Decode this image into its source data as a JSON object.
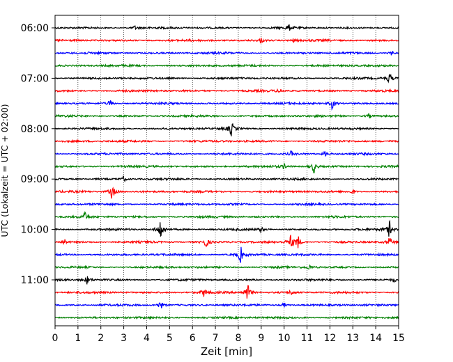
{
  "chart_data": {
    "type": "line",
    "title": "",
    "xlabel": "Zeit  [min]",
    "ylabel": "UTC (Lokalzeit = UTC + 02:00)",
    "xlim": [
      0,
      15
    ],
    "x_ticks": [
      "0",
      "1",
      "2",
      "3",
      "4",
      "5",
      "6",
      "7",
      "8",
      "9",
      "10",
      "11",
      "12",
      "13",
      "14",
      "15"
    ],
    "y_ticks": [
      "06:00",
      "07:00",
      "08:00",
      "09:00",
      "10:00",
      "11:00"
    ],
    "grid": "vertical dotted",
    "trace_colors": [
      "#000000",
      "#ff0000",
      "#0000ff",
      "#008000"
    ],
    "row_start_times": [
      "06:00",
      "06:15",
      "06:30",
      "06:45",
      "07:00",
      "07:15",
      "07:30",
      "07:45",
      "08:00",
      "08:15",
      "08:30",
      "08:45",
      "09:00",
      "09:15",
      "09:30",
      "09:45",
      "10:00",
      "10:15",
      "10:30",
      "10:45",
      "11:00",
      "11:15",
      "11:30",
      "11:45"
    ],
    "events": [
      {
        "row": 0,
        "x": 3.5,
        "amp": 0.25
      },
      {
        "row": 0,
        "x": 10.2,
        "amp": 0.35
      },
      {
        "row": 1,
        "x": 9.0,
        "amp": 0.3
      },
      {
        "row": 1,
        "x": 10.4,
        "amp": 0.2
      },
      {
        "row": 2,
        "x": 14.7,
        "amp": 0.3
      },
      {
        "row": 4,
        "x": 14.6,
        "amp": 0.7
      },
      {
        "row": 5,
        "x": 9.8,
        "amp": 0.25
      },
      {
        "row": 6,
        "x": 2.4,
        "amp": 0.4
      },
      {
        "row": 6,
        "x": 12.1,
        "amp": 0.7
      },
      {
        "row": 7,
        "x": 13.7,
        "amp": 0.3
      },
      {
        "row": 8,
        "x": 7.7,
        "amp": 0.9
      },
      {
        "row": 10,
        "x": 10.3,
        "amp": 0.3
      },
      {
        "row": 10,
        "x": 11.8,
        "amp": 0.3
      },
      {
        "row": 11,
        "x": 11.3,
        "amp": 0.8
      },
      {
        "row": 11,
        "x": 10.0,
        "amp": 0.3
      },
      {
        "row": 12,
        "x": 3.0,
        "amp": 0.3
      },
      {
        "row": 13,
        "x": 2.5,
        "amp": 1.1
      },
      {
        "row": 13,
        "x": 13.0,
        "amp": 0.3
      },
      {
        "row": 15,
        "x": 1.3,
        "amp": 0.5
      },
      {
        "row": 16,
        "x": 4.6,
        "amp": 1.3
      },
      {
        "row": 16,
        "x": 9.0,
        "amp": 0.3
      },
      {
        "row": 16,
        "x": 14.6,
        "amp": 1.0
      },
      {
        "row": 17,
        "x": 0.4,
        "amp": 0.4
      },
      {
        "row": 17,
        "x": 6.6,
        "amp": 0.7
      },
      {
        "row": 17,
        "x": 10.3,
        "amp": 0.8
      },
      {
        "row": 17,
        "x": 10.6,
        "amp": 0.8
      },
      {
        "row": 17,
        "x": 14.6,
        "amp": 0.5
      },
      {
        "row": 18,
        "x": 8.1,
        "amp": 1.0
      },
      {
        "row": 19,
        "x": 11.1,
        "amp": 0.3
      },
      {
        "row": 20,
        "x": 1.4,
        "amp": 0.5
      },
      {
        "row": 20,
        "x": 14.8,
        "amp": 0.3
      },
      {
        "row": 21,
        "x": 6.5,
        "amp": 0.5
      },
      {
        "row": 21,
        "x": 8.4,
        "amp": 1.3
      },
      {
        "row": 21,
        "x": 10.3,
        "amp": 0.3
      },
      {
        "row": 22,
        "x": 4.6,
        "amp": 0.6
      },
      {
        "row": 22,
        "x": 10.0,
        "amp": 0.3
      }
    ]
  }
}
